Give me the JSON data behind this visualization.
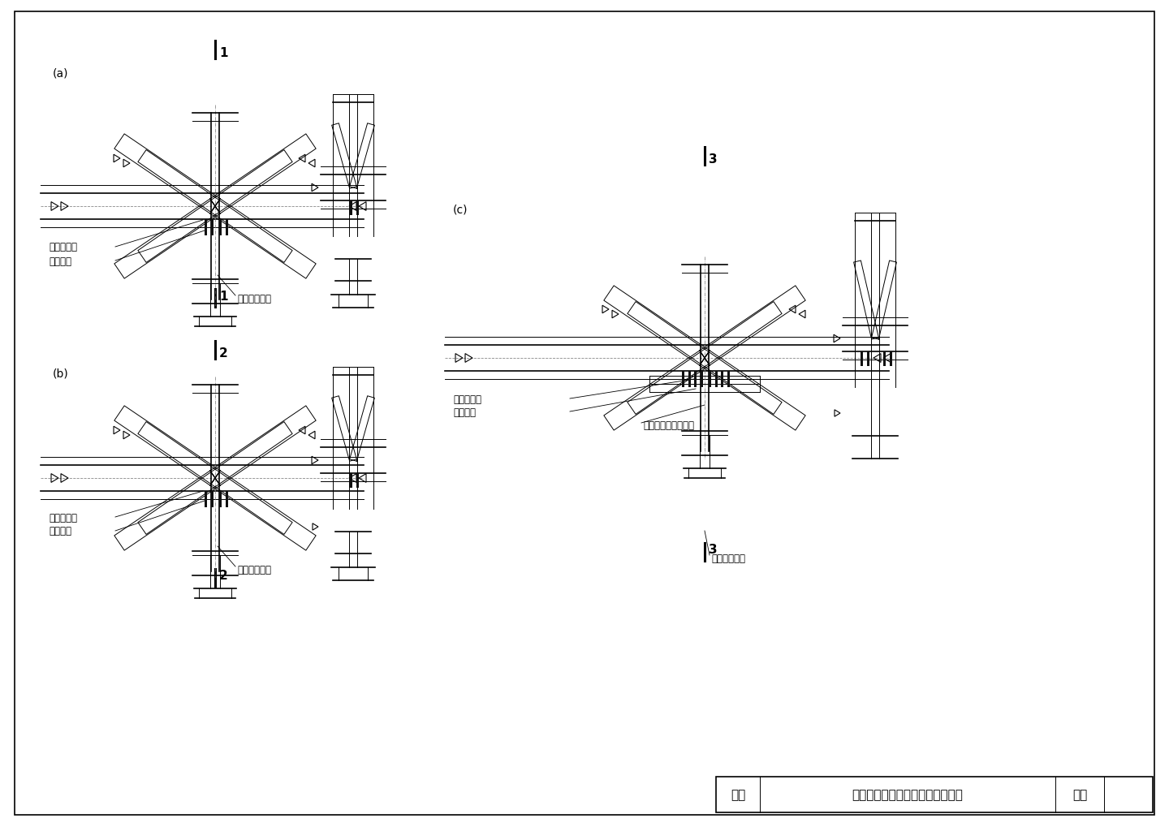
{
  "background_color": "#ffffff",
  "line_color": "#000000",
  "label_a": "(a)",
  "label_b": "(b)",
  "label_c": "(c)",
  "text_xjxg": "屋架下弦杆",
  "text_ljlg": "连接螺栓",
  "text_fzgj": "连接辅助短工字形钢",
  "text_djgd": "悬挂吊车轨道",
  "title": "悬挂吊车轨道梁在屋架节点的连接",
  "fig_title_label": "图名",
  "fig_page_label": "图页"
}
